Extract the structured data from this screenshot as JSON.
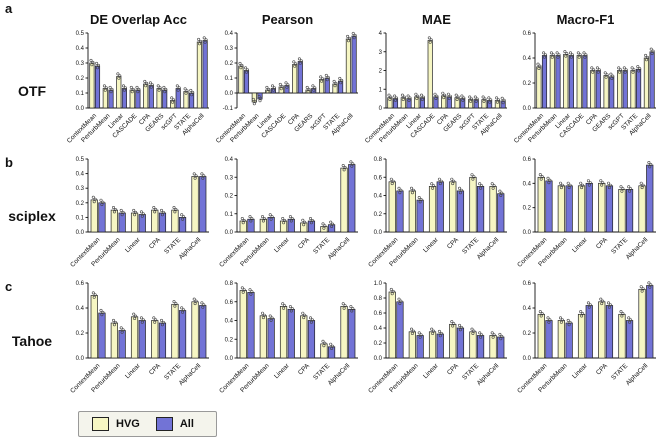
{
  "figure": {
    "panel_labels": [
      "a",
      "b",
      "c"
    ],
    "row_labels": [
      "OTF",
      "sciplex",
      "Tahoe"
    ],
    "col_titles": [
      "DE Overlap Acc",
      "Pearson",
      "MAE",
      "Macro-F1"
    ],
    "legend": [
      {
        "label": "HVG",
        "color": "#f6f6c3"
      },
      {
        "label": "All",
        "color": "#7273d6"
      }
    ]
  },
  "chart_data": [
    {
      "type": "bar",
      "row": "OTF",
      "col": "DE Overlap Acc",
      "categories": [
        "ContextMean",
        "PerturbMean",
        "Linear",
        "CASCADE",
        "CPA",
        "GEARS",
        "scGPT",
        "STATE",
        "AlphaCell"
      ],
      "series": [
        {
          "name": "HVG",
          "values": [
            0.3,
            0.13,
            0.21,
            0.12,
            0.16,
            0.13,
            0.05,
            0.11,
            0.44
          ]
        },
        {
          "name": "All",
          "values": [
            0.28,
            0.12,
            0.13,
            0.12,
            0.15,
            0.12,
            0.13,
            0.1,
            0.45
          ]
        }
      ],
      "ylim": [
        0,
        0.5
      ],
      "yticks": [
        0,
        0.1,
        0.2,
        0.3,
        0.4,
        0.5
      ],
      "decimals": 1
    },
    {
      "type": "bar",
      "row": "OTF",
      "col": "Pearson",
      "categories": [
        "ContextMean",
        "PerturbMean",
        "Linear",
        "CASCADE",
        "CPA",
        "GEARS",
        "scGPT",
        "STATE",
        "AlphaCell"
      ],
      "series": [
        {
          "name": "HVG",
          "values": [
            0.18,
            -0.06,
            0.02,
            0.04,
            0.19,
            0.02,
            0.09,
            0.06,
            0.36
          ]
        },
        {
          "name": "All",
          "values": [
            0.15,
            -0.04,
            0.03,
            0.05,
            0.21,
            0.03,
            0.1,
            0.08,
            0.38
          ]
        }
      ],
      "ylim": [
        -0.1,
        0.4
      ],
      "yticks": [
        -0.1,
        0,
        0.1,
        0.2,
        0.3,
        0.4
      ],
      "decimals": 1
    },
    {
      "type": "bar",
      "row": "OTF",
      "col": "MAE",
      "categories": [
        "ContextMean",
        "PerturbMean",
        "Linear",
        "CASCADE",
        "CPA",
        "GEARS",
        "scGPT",
        "STATE",
        "AlphaCell"
      ],
      "series": [
        {
          "name": "HVG",
          "values": [
            0.55,
            0.55,
            0.6,
            3.6,
            0.65,
            0.55,
            0.45,
            0.45,
            0.4
          ]
        },
        {
          "name": "All",
          "values": [
            0.5,
            0.5,
            0.55,
            0.6,
            0.6,
            0.5,
            0.45,
            0.4,
            0.38
          ]
        }
      ],
      "ylim": [
        0,
        4
      ],
      "yticks": [
        0,
        1,
        2,
        3,
        4
      ],
      "decimals": 0
    },
    {
      "type": "bar",
      "row": "OTF",
      "col": "Macro-F1",
      "categories": [
        "ContextMean",
        "PerturbMean",
        "Linear",
        "CASCADE",
        "CPA",
        "GEARS",
        "scGPT",
        "STATE",
        "AlphaCell"
      ],
      "series": [
        {
          "name": "HVG",
          "values": [
            0.33,
            0.42,
            0.43,
            0.42,
            0.3,
            0.26,
            0.3,
            0.3,
            0.4
          ]
        },
        {
          "name": "All",
          "values": [
            0.42,
            0.42,
            0.42,
            0.42,
            0.3,
            0.25,
            0.3,
            0.31,
            0.45
          ]
        }
      ],
      "ylim": [
        0,
        0.6
      ],
      "yticks": [
        0,
        0.2,
        0.4,
        0.6
      ],
      "decimals": 1
    },
    {
      "type": "bar",
      "row": "sciplex",
      "col": "DE Overlap Acc",
      "categories": [
        "ContextMean",
        "PerturbMean",
        "Linear",
        "CPA",
        "STATE",
        "AlphaCell"
      ],
      "series": [
        {
          "name": "HVG",
          "values": [
            0.22,
            0.15,
            0.13,
            0.15,
            0.15,
            0.38
          ]
        },
        {
          "name": "All",
          "values": [
            0.2,
            0.13,
            0.12,
            0.13,
            0.1,
            0.38
          ]
        }
      ],
      "ylim": [
        0,
        0.5
      ],
      "yticks": [
        0,
        0.1,
        0.2,
        0.3,
        0.4,
        0.5
      ],
      "decimals": 1
    },
    {
      "type": "bar",
      "row": "sciplex",
      "col": "Pearson",
      "categories": [
        "ContextMean",
        "PerturbMean",
        "Linear",
        "CPA",
        "STATE",
        "AlphaCell"
      ],
      "series": [
        {
          "name": "HVG",
          "values": [
            0.06,
            0.07,
            0.06,
            0.05,
            0.03,
            0.35
          ]
        },
        {
          "name": "All",
          "values": [
            0.07,
            0.08,
            0.07,
            0.06,
            0.04,
            0.37
          ]
        }
      ],
      "ylim": [
        0,
        0.4
      ],
      "yticks": [
        0,
        0.1,
        0.2,
        0.3,
        0.4
      ],
      "decimals": 1
    },
    {
      "type": "bar",
      "row": "sciplex",
      "col": "MAE",
      "categories": [
        "ContextMean",
        "PerturbMean",
        "Linear",
        "CPA",
        "STATE",
        "AlphaCell"
      ],
      "series": [
        {
          "name": "HVG",
          "values": [
            0.55,
            0.45,
            0.5,
            0.55,
            0.6,
            0.5
          ]
        },
        {
          "name": "All",
          "values": [
            0.45,
            0.35,
            0.55,
            0.45,
            0.5,
            0.42
          ]
        }
      ],
      "ylim": [
        0,
        0.8
      ],
      "yticks": [
        0,
        0.2,
        0.4,
        0.6,
        0.8
      ],
      "decimals": 1
    },
    {
      "type": "bar",
      "row": "sciplex",
      "col": "Macro-F1",
      "categories": [
        "ContextMean",
        "PerturbMean",
        "Linear",
        "CPA",
        "STATE",
        "AlphaCell"
      ],
      "series": [
        {
          "name": "HVG",
          "values": [
            0.45,
            0.38,
            0.38,
            0.4,
            0.35,
            0.38
          ]
        },
        {
          "name": "All",
          "values": [
            0.42,
            0.38,
            0.4,
            0.38,
            0.35,
            0.55
          ]
        }
      ],
      "ylim": [
        0,
        0.6
      ],
      "yticks": [
        0,
        0.2,
        0.4,
        0.6
      ],
      "decimals": 1
    },
    {
      "type": "bar",
      "row": "Tahoe",
      "col": "DE Overlap Acc",
      "categories": [
        "ContextMean",
        "PerturbMean",
        "Linear",
        "CPA",
        "STATE",
        "AlphaCell"
      ],
      "series": [
        {
          "name": "HVG",
          "values": [
            0.5,
            0.28,
            0.33,
            0.3,
            0.43,
            0.45
          ]
        },
        {
          "name": "All",
          "values": [
            0.36,
            0.22,
            0.3,
            0.28,
            0.38,
            0.42
          ]
        }
      ],
      "ylim": [
        0,
        0.6
      ],
      "yticks": [
        0,
        0.2,
        0.4,
        0.6
      ],
      "decimals": 1
    },
    {
      "type": "bar",
      "row": "Tahoe",
      "col": "Pearson",
      "categories": [
        "ContextMean",
        "PerturbMean",
        "Linear",
        "CPA",
        "STATE",
        "AlphaCell"
      ],
      "series": [
        {
          "name": "HVG",
          "values": [
            0.72,
            0.45,
            0.55,
            0.45,
            0.15,
            0.55
          ]
        },
        {
          "name": "All",
          "values": [
            0.7,
            0.42,
            0.52,
            0.4,
            0.12,
            0.52
          ]
        }
      ],
      "ylim": [
        0,
        0.8
      ],
      "yticks": [
        0,
        0.2,
        0.4,
        0.6,
        0.8
      ],
      "decimals": 1
    },
    {
      "type": "bar",
      "row": "Tahoe",
      "col": "MAE",
      "categories": [
        "ContextMean",
        "PerturbMean",
        "Linear",
        "CPA",
        "STATE",
        "AlphaCell"
      ],
      "series": [
        {
          "name": "HVG",
          "values": [
            0.88,
            0.35,
            0.35,
            0.45,
            0.35,
            0.3
          ]
        },
        {
          "name": "All",
          "values": [
            0.75,
            0.3,
            0.32,
            0.4,
            0.3,
            0.28
          ]
        }
      ],
      "ylim": [
        0,
        1.0
      ],
      "yticks": [
        0,
        0.2,
        0.4,
        0.6,
        0.8,
        1.0
      ],
      "decimals": 1
    },
    {
      "type": "bar",
      "row": "Tahoe",
      "col": "Macro-F1",
      "categories": [
        "ContextMean",
        "PerturbMean",
        "Linear",
        "CPA",
        "STATE",
        "AlphaCell"
      ],
      "series": [
        {
          "name": "HVG",
          "values": [
            0.35,
            0.3,
            0.35,
            0.45,
            0.35,
            0.55
          ]
        },
        {
          "name": "All",
          "values": [
            0.3,
            0.28,
            0.42,
            0.42,
            0.3,
            0.58
          ]
        }
      ],
      "ylim": [
        0,
        0.6
      ],
      "yticks": [
        0,
        0.2,
        0.4,
        0.6
      ],
      "decimals": 1
    }
  ]
}
